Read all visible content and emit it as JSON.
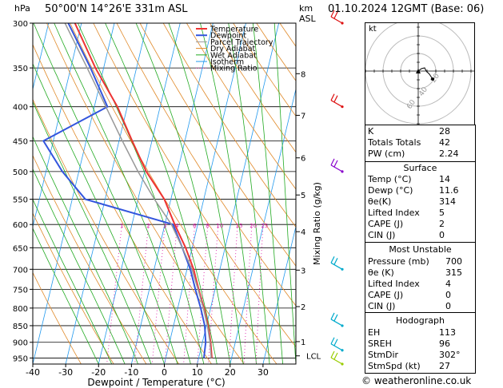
{
  "header": {
    "hpa_label": "hPa",
    "location": "50°00'N  14°26'E  331m  ASL",
    "km_label": "km",
    "asl_label": "ASL",
    "datetime": "01.10.2024  12GMT  (Base: 06)"
  },
  "chart_data": {
    "type": "line",
    "title": "",
    "xlabel": "Dewpoint / Temperature (°C)",
    "ylabel": "hPa",
    "mixing_ratio_axis_label": "Mixing Ratio (g/kg)",
    "x_range": [
      -40,
      40
    ],
    "p_range": [
      300,
      970
    ],
    "x_ticks": [
      "-40",
      "-30",
      "-20",
      "-10",
      "0",
      "10",
      "20",
      "30"
    ],
    "pressure_ticks": [
      "300",
      "350",
      "400",
      "450",
      "500",
      "550",
      "600",
      "650",
      "700",
      "750",
      "800",
      "850",
      "900",
      "950"
    ],
    "km_ticks": [
      {
        "label": "8",
        "p": 357
      },
      {
        "label": "7",
        "p": 412
      },
      {
        "label": "6",
        "p": 477
      },
      {
        "label": "5",
        "p": 542
      },
      {
        "label": "4",
        "p": 615
      },
      {
        "label": "3",
        "p": 702
      },
      {
        "label": "2",
        "p": 796
      },
      {
        "label": "1",
        "p": 898
      },
      {
        "label": "LCL",
        "p": 943
      }
    ],
    "mixing_ratio_labels": [
      "1",
      "2",
      "3",
      "4",
      "6",
      "8",
      "10",
      "15",
      "20",
      "25"
    ],
    "mixing_ratio_values": [
      1,
      2,
      3,
      4,
      6,
      8,
      10,
      15,
      20,
      25
    ],
    "legend": [
      "Temperature",
      "Dewpoint",
      "Parcel Trajectory",
      "Dry Adiabat",
      "Wet Adiabat",
      "Isotherm",
      "Mixing Ratio"
    ],
    "series": [
      {
        "name": "Temperature",
        "color": "#ee3333",
        "points": [
          [
            300,
            -52
          ],
          [
            350,
            -42.5
          ],
          [
            400,
            -33
          ],
          [
            450,
            -26
          ],
          [
            500,
            -19.5
          ],
          [
            550,
            -12
          ],
          [
            600,
            -7
          ],
          [
            650,
            -2
          ],
          [
            700,
            2
          ],
          [
            750,
            5
          ],
          [
            800,
            8
          ],
          [
            850,
            10.5
          ],
          [
            900,
            12.5
          ],
          [
            950,
            14
          ]
        ]
      },
      {
        "name": "Dewpoint",
        "color": "#3355dd",
        "points": [
          [
            300,
            -54
          ],
          [
            350,
            -44
          ],
          [
            400,
            -36
          ],
          [
            450,
            -53
          ],
          [
            500,
            -45
          ],
          [
            550,
            -36
          ],
          [
            600,
            -7.5
          ],
          [
            650,
            -3
          ],
          [
            700,
            1
          ],
          [
            750,
            4
          ],
          [
            800,
            7
          ],
          [
            850,
            9.5
          ],
          [
            900,
            11
          ],
          [
            950,
            11.6
          ]
        ]
      },
      {
        "name": "Parcel Trajectory",
        "color": "#999999",
        "points": [
          [
            300,
            -55
          ],
          [
            350,
            -45
          ],
          [
            400,
            -36.5
          ],
          [
            450,
            -29
          ],
          [
            500,
            -22
          ],
          [
            550,
            -15
          ],
          [
            600,
            -8
          ],
          [
            650,
            -3
          ],
          [
            700,
            1.5
          ],
          [
            750,
            4.8
          ],
          [
            800,
            7.8
          ],
          [
            850,
            10.3
          ],
          [
            900,
            12.3
          ],
          [
            950,
            13.8
          ]
        ]
      }
    ],
    "wind_barbs": [
      {
        "p": 300,
        "color": "#dd1111"
      },
      {
        "p": 400,
        "color": "#dd1111"
      },
      {
        "p": 500,
        "color": "#8800cc"
      },
      {
        "p": 700,
        "color": "#00aacc"
      },
      {
        "p": 850,
        "color": "#00aacc"
      },
      {
        "p": 925,
        "color": "#00aacc"
      },
      {
        "p": 970,
        "color": "#99cc00"
      }
    ]
  },
  "hodograph": {
    "label": "kt",
    "ring_labels": [
      "20",
      "40",
      "60"
    ]
  },
  "indices": {
    "rows": [
      {
        "label": "K",
        "value": "28"
      },
      {
        "label": "Totals Totals",
        "value": "42"
      },
      {
        "label": "PW (cm)",
        "value": "2.24"
      }
    ]
  },
  "surface": {
    "title": "Surface",
    "rows": [
      {
        "label": "Temp (°C)",
        "value": "14"
      },
      {
        "label": "Dewp (°C)",
        "value": "11.6"
      },
      {
        "label": "θe(K)",
        "value": "314"
      },
      {
        "label": "Lifted Index",
        "value": "5"
      },
      {
        "label": "CAPE (J)",
        "value": "2"
      },
      {
        "label": "CIN (J)",
        "value": "0"
      }
    ]
  },
  "most_unstable": {
    "title": "Most Unstable",
    "rows": [
      {
        "label": "Pressure (mb)",
        "value": "700"
      },
      {
        "label": "θe (K)",
        "value": "315"
      },
      {
        "label": "Lifted Index",
        "value": "4"
      },
      {
        "label": "CAPE (J)",
        "value": "0"
      },
      {
        "label": "CIN (J)",
        "value": "0"
      }
    ]
  },
  "hodograph_table": {
    "title": "Hodograph",
    "rows": [
      {
        "label": "EH",
        "value": "113"
      },
      {
        "label": "SREH",
        "value": "96"
      },
      {
        "label": "StmDir",
        "value": "302°"
      },
      {
        "label": "StmSpd (kt)",
        "value": "27"
      }
    ]
  },
  "footer": "© weatheronline.co.uk",
  "colors": {
    "temperature": "#ee3333",
    "dewpoint": "#3355dd",
    "parcel": "#999999",
    "dry_adiabat": "#e08a2a",
    "wet_adiabat": "#22aa22",
    "isotherm": "#2299ee",
    "mixing_ratio": "#dd22aa"
  }
}
